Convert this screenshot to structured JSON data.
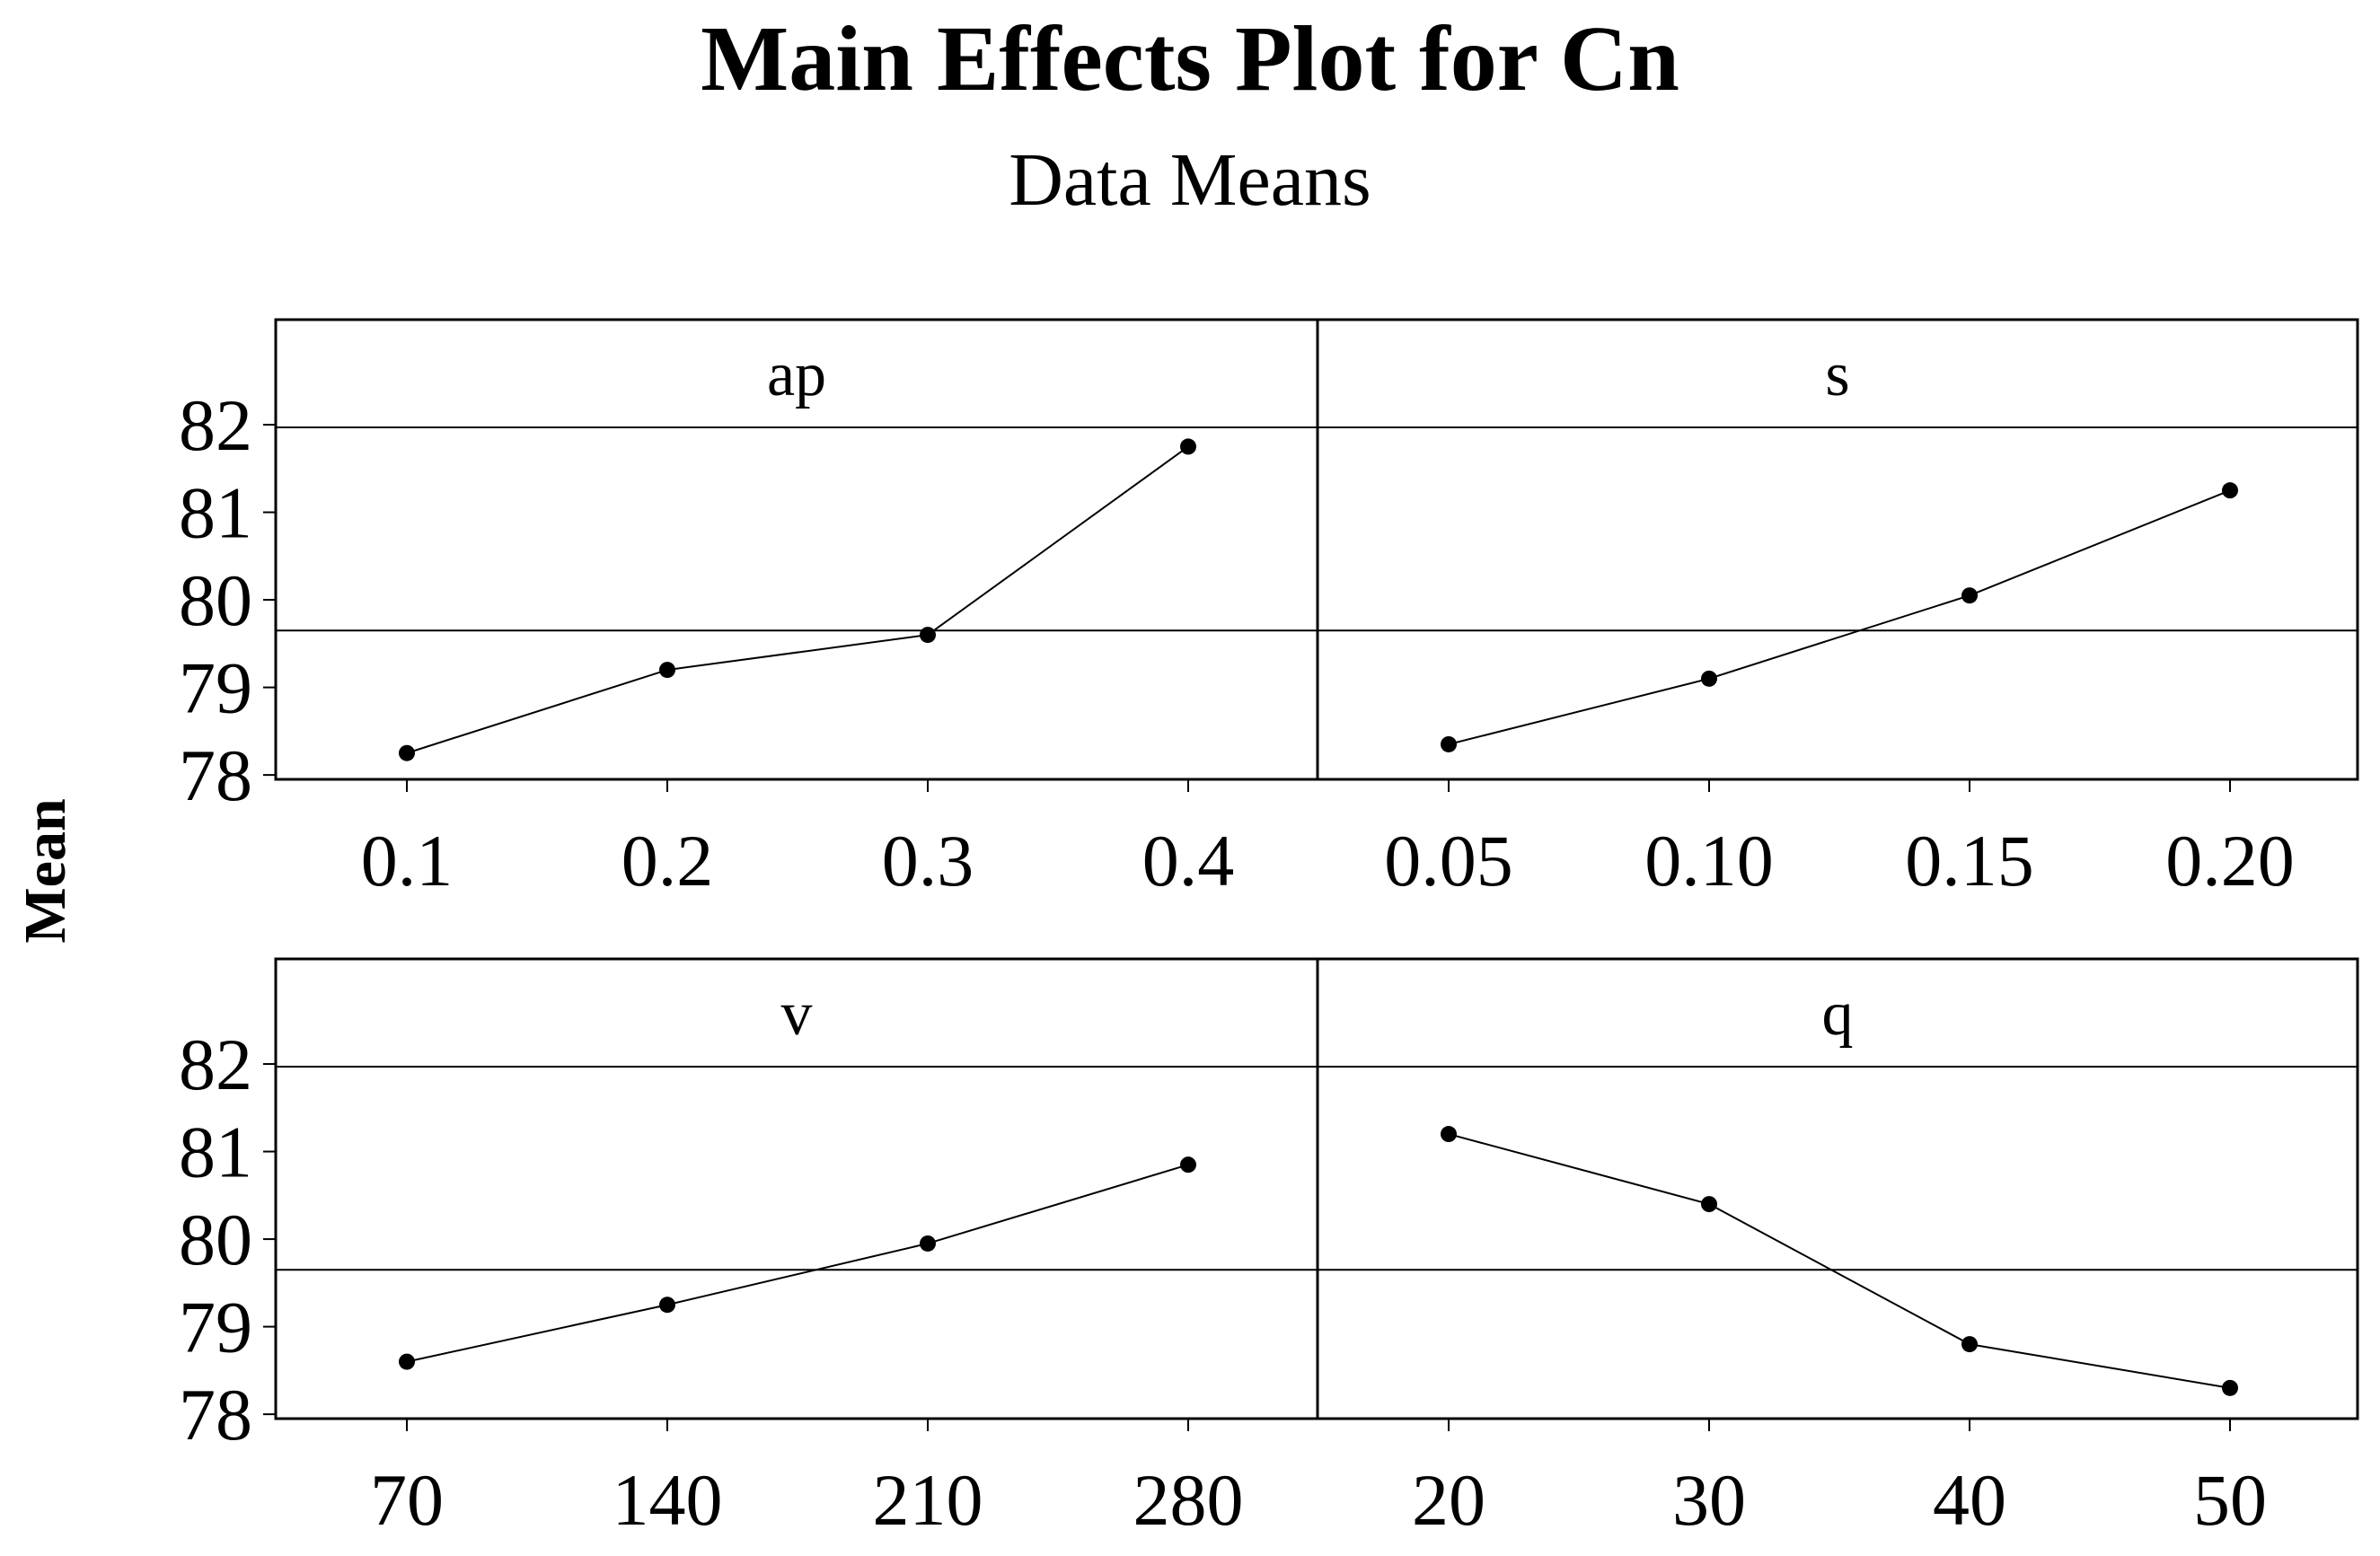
{
  "title": "Main Effects Plot for Cn",
  "subtitle": "Data Means",
  "ylabel": "Mean",
  "chart_data": {
    "type": "line",
    "title": "Main Effects Plot for Cn",
    "subtitle": "Data Means",
    "ylabel": "Mean",
    "ylim": [
      77.95,
      83.2
    ],
    "yticks": [
      "78",
      "79",
      "80",
      "81",
      "82"
    ],
    "reference_mean": 79.65,
    "panels": [
      {
        "name": "ap",
        "categories": [
          "0.1",
          "0.2",
          "0.3",
          "0.4"
        ],
        "values": [
          78.25,
          79.2,
          79.6,
          81.75
        ]
      },
      {
        "name": "s",
        "categories": [
          "0.05",
          "0.10",
          "0.15",
          "0.20"
        ],
        "values": [
          78.35,
          79.1,
          80.05,
          81.25
        ]
      },
      {
        "name": "v",
        "categories": [
          "70",
          "140",
          "210",
          "280"
        ],
        "values": [
          78.6,
          79.25,
          79.95,
          80.85
        ]
      },
      {
        "name": "q",
        "categories": [
          "20",
          "30",
          "40",
          "50"
        ],
        "values": [
          81.2,
          80.4,
          78.8,
          78.3
        ]
      }
    ]
  }
}
